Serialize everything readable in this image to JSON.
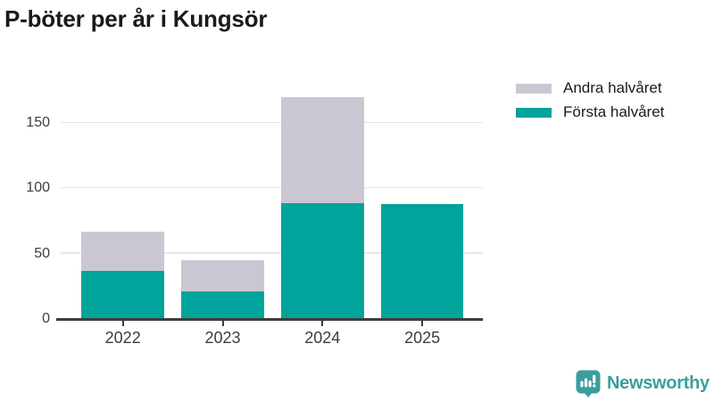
{
  "chart_data": {
    "type": "bar",
    "stacked": true,
    "title": "P-böter per år i Kungsör",
    "categories": [
      "2022",
      "2023",
      "2024",
      "2025"
    ],
    "series": [
      {
        "name": "Första halvåret",
        "color": "#00a49a",
        "values": [
          37,
          21,
          89,
          88
        ]
      },
      {
        "name": "Andra halvåret",
        "color": "#c9c8d2",
        "values": [
          30,
          24,
          81,
          0
        ]
      }
    ],
    "stack_totals": [
      67,
      45,
      170,
      88
    ],
    "yticks": [
      0,
      50,
      100,
      150
    ],
    "ylim": [
      0,
      176
    ],
    "xlabel": "",
    "ylabel": "",
    "grid": "horizontal",
    "legend_position": "top-right"
  },
  "legend": {
    "items": [
      {
        "label": "Andra halvåret",
        "color": "#c9c8d2"
      },
      {
        "label": "Första halvåret",
        "color": "#00a49a"
      }
    ]
  },
  "branding": {
    "name": "Newsworthy",
    "color": "#3a9e9e",
    "icon": "newsworthy-bar-chart-speech-bubble"
  },
  "style": {
    "background": "#ffffff",
    "title_color": "#1a1a1a",
    "axis_color": "#3d3d3d",
    "grid_color": "#e6e6e6",
    "tick_label_color": "#3d3d3d"
  }
}
